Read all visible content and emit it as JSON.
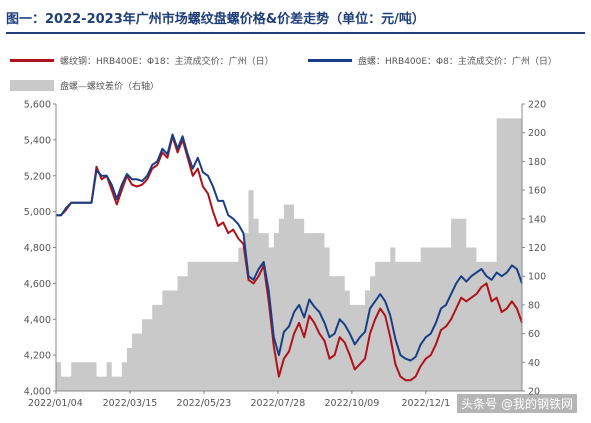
{
  "chart_data": {
    "type": "line",
    "title": "图一：2022-2023年广州市场螺纹盘螺价格&价差走势（单位：元/吨）",
    "x_tick_labels": [
      "2022/01/04",
      "2022/03/15",
      "2022/05/23",
      "2022/07/28",
      "2022/10/09",
      "2022/12/1"
    ],
    "y_left": {
      "ticks": [
        "4,000",
        "4,200",
        "4,400",
        "4,600",
        "4,800",
        "5,000",
        "5,200",
        "5,400",
        "5,600"
      ],
      "range": [
        4000,
        5600
      ]
    },
    "y_right": {
      "ticks": [
        "20",
        "40",
        "60",
        "80",
        "100",
        "120",
        "140",
        "160",
        "180",
        "200",
        "220"
      ],
      "range": [
        20,
        220
      ]
    },
    "series": [
      {
        "name": "螺纹钢：HRB400E：Φ18：主流成交价：广州（日）",
        "axis": "left",
        "color": "#b0121b",
        "kind": "line",
        "values": [
          4980,
          4980,
          5010,
          5050,
          5050,
          5050,
          5050,
          5050,
          5250,
          5180,
          5200,
          5120,
          5040,
          5120,
          5200,
          5150,
          5140,
          5150,
          5180,
          5240,
          5260,
          5330,
          5300,
          5420,
          5330,
          5400,
          5300,
          5200,
          5240,
          5140,
          5100,
          5000,
          4920,
          4940,
          4880,
          4900,
          4850,
          4820,
          4620,
          4600,
          4640,
          4700,
          4500,
          4250,
          4080,
          4180,
          4220,
          4320,
          4380,
          4300,
          4420,
          4380,
          4320,
          4280,
          4180,
          4200,
          4300,
          4270,
          4200,
          4120,
          4150,
          4180,
          4320,
          4400,
          4460,
          4420,
          4300,
          4150,
          4080,
          4060,
          4060,
          4080,
          4140,
          4180,
          4200,
          4260,
          4340,
          4360,
          4400,
          4460,
          4520,
          4500,
          4520,
          4540,
          4580,
          4600,
          4500,
          4520,
          4440,
          4460,
          4500,
          4460,
          4380
        ]
      },
      {
        "name": "盘螺：HRB400E：Φ8：主流成交价：广州（日）",
        "axis": "left",
        "color": "#183f86",
        "kind": "line",
        "values": [
          4980,
          4980,
          5020,
          5050,
          5050,
          5050,
          5050,
          5050,
          5230,
          5200,
          5200,
          5150,
          5070,
          5150,
          5210,
          5180,
          5180,
          5170,
          5200,
          5260,
          5280,
          5350,
          5320,
          5430,
          5350,
          5420,
          5320,
          5240,
          5300,
          5220,
          5200,
          5140,
          5060,
          5060,
          4980,
          4960,
          4930,
          4880,
          4640,
          4620,
          4680,
          4720,
          4560,
          4300,
          4200,
          4330,
          4360,
          4440,
          4480,
          4410,
          4510,
          4470,
          4440,
          4380,
          4300,
          4320,
          4400,
          4370,
          4320,
          4260,
          4300,
          4330,
          4460,
          4500,
          4540,
          4500,
          4420,
          4290,
          4200,
          4180,
          4170,
          4190,
          4260,
          4300,
          4320,
          4380,
          4460,
          4480,
          4540,
          4600,
          4640,
          4610,
          4640,
          4660,
          4680,
          4640,
          4620,
          4660,
          4640,
          4660,
          4700,
          4680,
          4600
        ]
      },
      {
        "name": "盘螺—螺纹差价（右轴）",
        "axis": "right",
        "color": "#c9c9c9",
        "kind": "area",
        "values": [
          40,
          30,
          30,
          40,
          40,
          40,
          40,
          40,
          30,
          30,
          40,
          30,
          30,
          40,
          50,
          60,
          60,
          70,
          70,
          80,
          80,
          90,
          90,
          90,
          100,
          100,
          110,
          110,
          110,
          110,
          110,
          110,
          110,
          110,
          110,
          110,
          120,
          130,
          160,
          140,
          130,
          130,
          120,
          130,
          140,
          150,
          150,
          140,
          140,
          130,
          130,
          130,
          130,
          120,
          100,
          100,
          100,
          90,
          80,
          80,
          80,
          90,
          100,
          110,
          110,
          110,
          120,
          110,
          110,
          110,
          110,
          110,
          120,
          120,
          120,
          120,
          120,
          120,
          140,
          140,
          140,
          120,
          120,
          110,
          110,
          110,
          110,
          210,
          210,
          210,
          210,
          210,
          220
        ]
      }
    ],
    "legend": {
      "item1": "螺纹钢：HRB400E：Φ18：主流成交价：广州（日）",
      "item2": "盘螺：HRB400E：Φ8：主流成交价：广州（日）",
      "item3": "盘螺—螺纹差价（右轴）"
    },
    "watermark": "头条号 @我的钢铁网"
  }
}
